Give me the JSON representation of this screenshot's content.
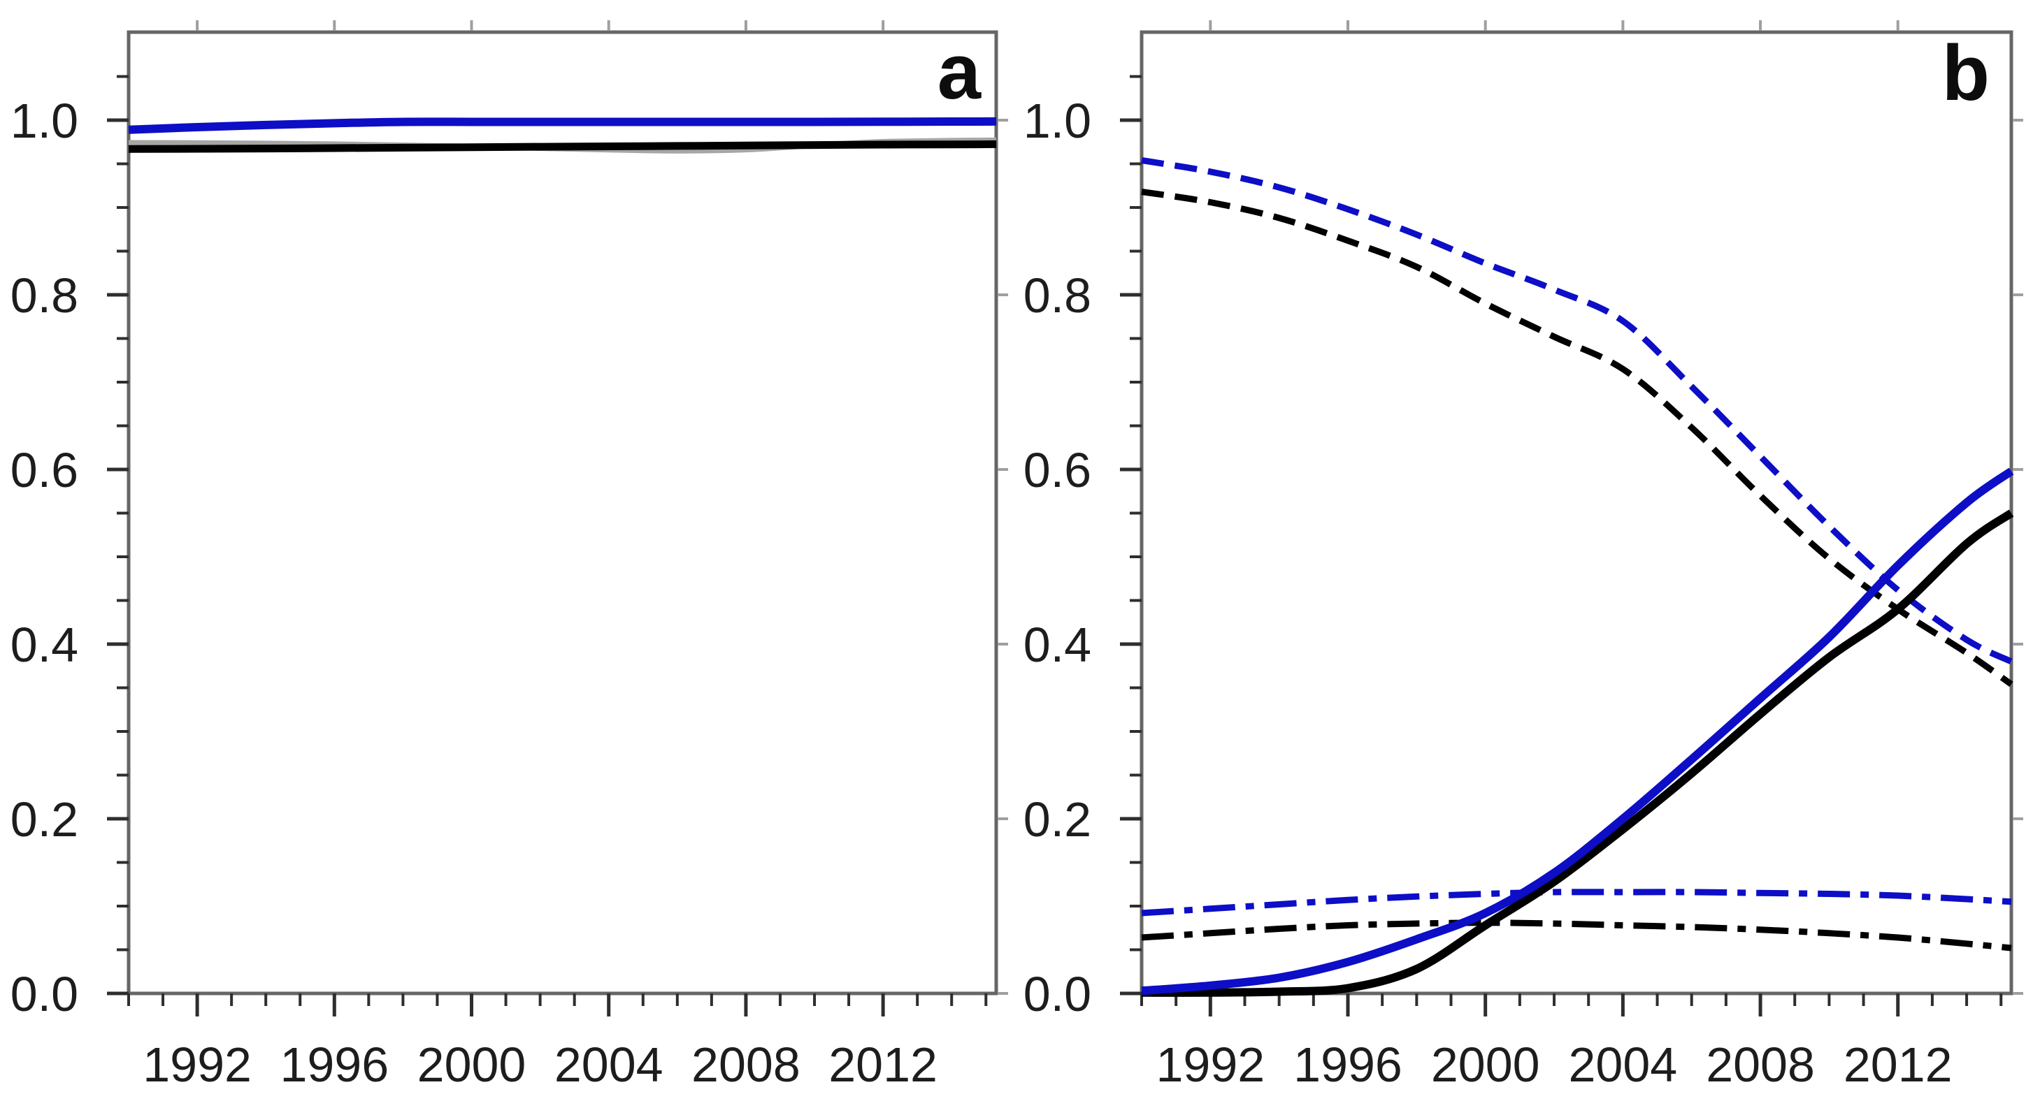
{
  "figure": {
    "background": "#ffffff",
    "description": "Two-panel line chart of fractions versus year",
    "style": {
      "frame_color": "#666666",
      "axis_tick_color": "#2e2e2e",
      "outer_tick_color": "#9f9f9f",
      "label_color": "#1d1d1d",
      "blue": "#0d0ec6",
      "black": "#000000",
      "gray": "#a6a6a6"
    }
  },
  "chart_data": {
    "type": "line",
    "title": "",
    "xlabel": "",
    "ylabel": "",
    "x_axis": {
      "min": 1990,
      "max": 2015.3,
      "major_tick_years": [
        1992,
        1996,
        2000,
        2004,
        2008,
        2012
      ],
      "major_tick_labels": [
        "1992",
        "1996",
        "2000",
        "2004",
        "2008",
        "2012"
      ],
      "minor_tick_step_years": 1,
      "grid": false
    },
    "y_axis": {
      "min": 0.0,
      "max": 1.1,
      "major_tick_values": [
        0.0,
        0.2,
        0.4,
        0.6,
        0.8,
        1.0
      ],
      "major_tick_labels": [
        "0.0",
        "0.2",
        "0.4",
        "0.6",
        "0.8",
        "1.0"
      ],
      "minor_tick_step": 0.05,
      "grid": false
    },
    "legend": {
      "visible": false
    },
    "panels": [
      {
        "id": "a",
        "label": "a",
        "series": [
          {
            "name": "gray-solid",
            "color": "#a6a6a6",
            "line_style": "solid",
            "line_width": 8,
            "points": [
              [
                1990,
                0.974
              ],
              [
                1992,
                0.9738
              ],
              [
                1994,
                0.9733
              ],
              [
                1996,
                0.9725
              ],
              [
                1998,
                0.9712
              ],
              [
                2000,
                0.9698
              ],
              [
                2002,
                0.968
              ],
              [
                2004,
                0.9662
              ],
              [
                2006,
                0.965
              ],
              [
                2008,
                0.9663
              ],
              [
                2010,
                0.9712
              ],
              [
                2012,
                0.9752
              ],
              [
                2014,
                0.9765
              ],
              [
                2015.3,
                0.977
              ]
            ]
          },
          {
            "name": "black-solid",
            "color": "#000000",
            "line_style": "solid",
            "line_width": 11,
            "points": [
              [
                1990,
                0.967
              ],
              [
                1992,
                0.9672
              ],
              [
                1994,
                0.9675
              ],
              [
                1996,
                0.968
              ],
              [
                1998,
                0.9685
              ],
              [
                2000,
                0.969
              ],
              [
                2002,
                0.9695
              ],
              [
                2004,
                0.97
              ],
              [
                2006,
                0.9705
              ],
              [
                2008,
                0.971
              ],
              [
                2010,
                0.9715
              ],
              [
                2012,
                0.972
              ],
              [
                2014,
                0.9722
              ],
              [
                2015.3,
                0.9725
              ]
            ]
          },
          {
            "name": "blue-solid",
            "color": "#0d0ec6",
            "line_style": "solid",
            "line_width": 12,
            "points": [
              [
                1990,
                0.989
              ],
              [
                1992,
                0.992
              ],
              [
                1994,
                0.9945
              ],
              [
                1996,
                0.9965
              ],
              [
                1998,
                0.998
              ],
              [
                2000,
                0.998
              ],
              [
                2002,
                0.998
              ],
              [
                2004,
                0.998
              ],
              [
                2006,
                0.998
              ],
              [
                2008,
                0.998
              ],
              [
                2010,
                0.998
              ],
              [
                2012,
                0.9982
              ],
              [
                2014,
                0.9984
              ],
              [
                2015.3,
                0.9985
              ]
            ]
          }
        ]
      },
      {
        "id": "b",
        "label": "b",
        "series": [
          {
            "name": "blue-dashed",
            "color": "#0d0ec6",
            "line_style": "dashed",
            "line_width": 9,
            "points": [
              [
                1990,
                0.954
              ],
              [
                1992,
                0.941
              ],
              [
                1994,
                0.923
              ],
              [
                1996,
                0.898
              ],
              [
                1998,
                0.869
              ],
              [
                2000,
                0.836
              ],
              [
                2002,
                0.806
              ],
              [
                2004,
                0.77
              ],
              [
                2006,
                0.695
              ],
              [
                2008,
                0.615
              ],
              [
                2010,
                0.535
              ],
              [
                2012,
                0.462
              ],
              [
                2014,
                0.405
              ],
              [
                2015.3,
                0.38
              ]
            ]
          },
          {
            "name": "black-dashed",
            "color": "#000000",
            "line_style": "dashed",
            "line_width": 9,
            "points": [
              [
                1990,
                0.918
              ],
              [
                1992,
                0.906
              ],
              [
                1994,
                0.888
              ],
              [
                1996,
                0.862
              ],
              [
                1998,
                0.832
              ],
              [
                2000,
                0.79
              ],
              [
                2002,
                0.752
              ],
              [
                2004,
                0.715
              ],
              [
                2006,
                0.648
              ],
              [
                2008,
                0.57
              ],
              [
                2010,
                0.498
              ],
              [
                2012,
                0.44
              ],
              [
                2014,
                0.39
              ],
              [
                2015.3,
                0.354
              ]
            ]
          },
          {
            "name": "blue-dashdot",
            "color": "#0d0ec6",
            "line_style": "dashdot",
            "line_width": 9,
            "points": [
              [
                1990,
                0.092
              ],
              [
                1992,
                0.097
              ],
              [
                1994,
                0.102
              ],
              [
                1996,
                0.107
              ],
              [
                1998,
                0.111
              ],
              [
                2000,
                0.114
              ],
              [
                2002,
                0.116
              ],
              [
                2004,
                0.116
              ],
              [
                2006,
                0.116
              ],
              [
                2008,
                0.115
              ],
              [
                2010,
                0.114
              ],
              [
                2012,
                0.112
              ],
              [
                2014,
                0.108
              ],
              [
                2015.3,
                0.105
              ]
            ]
          },
          {
            "name": "black-dashdot",
            "color": "#000000",
            "line_style": "dashdot",
            "line_width": 9,
            "points": [
              [
                1990,
                0.064
              ],
              [
                1992,
                0.069
              ],
              [
                1994,
                0.074
              ],
              [
                1996,
                0.078
              ],
              [
                1998,
                0.08
              ],
              [
                2000,
                0.081
              ],
              [
                2002,
                0.08
              ],
              [
                2004,
                0.078
              ],
              [
                2006,
                0.076
              ],
              [
                2008,
                0.073
              ],
              [
                2010,
                0.069
              ],
              [
                2012,
                0.064
              ],
              [
                2014,
                0.057
              ],
              [
                2015.3,
                0.052
              ]
            ]
          },
          {
            "name": "black-solid",
            "color": "#000000",
            "line_style": "solid",
            "line_width": 12,
            "points": [
              [
                1990,
                0.001
              ],
              [
                1992,
                0.001
              ],
              [
                1994,
                0.002
              ],
              [
                1996,
                0.006
              ],
              [
                1998,
                0.028
              ],
              [
                2000,
                0.078
              ],
              [
                2002,
                0.128
              ],
              [
                2004,
                0.188
              ],
              [
                2006,
                0.252
              ],
              [
                2008,
                0.32
              ],
              [
                2010,
                0.385
              ],
              [
                2012,
                0.44
              ],
              [
                2014,
                0.515
              ],
              [
                2015.3,
                0.55
              ]
            ]
          },
          {
            "name": "blue-solid",
            "color": "#0d0ec6",
            "line_style": "solid",
            "line_width": 12,
            "points": [
              [
                1990,
                0.003
              ],
              [
                1992,
                0.009
              ],
              [
                1994,
                0.018
              ],
              [
                1996,
                0.036
              ],
              [
                1998,
                0.062
              ],
              [
                2000,
                0.092
              ],
              [
                2002,
                0.138
              ],
              [
                2004,
                0.2
              ],
              [
                2006,
                0.268
              ],
              [
                2008,
                0.338
              ],
              [
                2010,
                0.408
              ],
              [
                2012,
                0.49
              ],
              [
                2014,
                0.562
              ],
              [
                2015.3,
                0.598
              ]
            ]
          }
        ]
      }
    ]
  }
}
